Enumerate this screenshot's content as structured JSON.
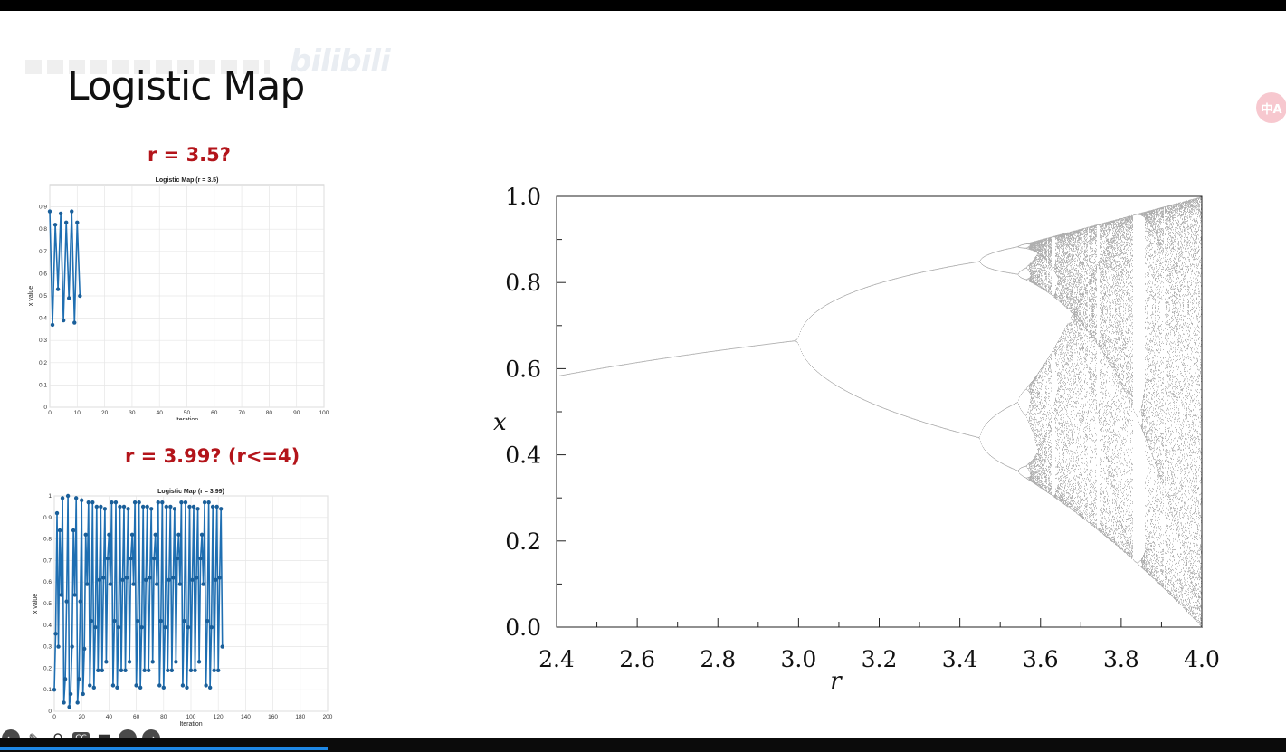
{
  "slide": {
    "title": "Logistic Map",
    "watermark": "bilibili",
    "badge": "中A",
    "caption1": "r = 3.5?",
    "caption2": "r = 3.99? (r<=4)"
  },
  "controls": [
    "arrow-left-icon",
    "pen-icon",
    "magnifier-icon",
    "cc-icon",
    "video-off-icon",
    "more-icon",
    "arrow-right-icon"
  ],
  "chart_data": [
    {
      "type": "line",
      "title": "Logistic Map (r = 3.5)",
      "xlabel": "Iteration",
      "ylabel": "x value",
      "xlim": [
        0,
        100
      ],
      "ylim": [
        0,
        1
      ],
      "xticks": [
        0,
        10,
        20,
        30,
        40,
        50,
        60,
        70,
        80,
        90,
        100
      ],
      "yticks": [
        0,
        0.1,
        0.2,
        0.3,
        0.4,
        0.5,
        0.6,
        0.7,
        0.8,
        0.9
      ],
      "grid": true,
      "color": "#1f6fb2",
      "x": [
        0,
        1,
        2,
        3,
        4,
        5,
        6,
        7,
        8,
        9,
        10,
        11
      ],
      "y": [
        0.88,
        0.37,
        0.82,
        0.53,
        0.87,
        0.39,
        0.83,
        0.49,
        0.88,
        0.38,
        0.83,
        0.5
      ]
    },
    {
      "type": "line",
      "title": "Logistic Map (r = 3.99)",
      "xlabel": "Iteration",
      "ylabel": "x value",
      "xlim": [
        0,
        200
      ],
      "ylim": [
        0,
        1
      ],
      "xticks": [
        0,
        20,
        40,
        60,
        80,
        100,
        120,
        140,
        160,
        180,
        200
      ],
      "yticks": [
        0,
        0.1,
        0.2,
        0.3,
        0.4,
        0.5,
        0.6,
        0.7,
        0.8,
        0.9,
        1
      ],
      "grid": true,
      "color": "#1f6fb2",
      "x0": 0,
      "y": [
        0.1,
        0.36,
        0.92,
        0.3,
        0.84,
        0.54,
        0.99,
        0.04,
        0.15,
        0.51,
        1.0,
        0.02,
        0.08,
        0.3,
        0.84,
        0.54,
        0.99,
        0.04,
        0.15,
        0.51,
        0.98,
        0.08,
        0.29,
        0.82,
        0.59,
        0.97,
        0.12,
        0.42,
        0.97,
        0.11,
        0.39,
        0.95,
        0.19,
        0.61,
        0.95,
        0.19,
        0.62,
        0.94,
        0.23,
        0.71,
        0.82,
        0.59,
        0.97,
        0.12,
        0.42,
        0.97,
        0.11,
        0.39,
        0.95,
        0.19,
        0.61,
        0.95,
        0.19,
        0.62,
        0.94,
        0.23,
        0.71,
        0.82,
        0.59,
        0.97,
        0.12,
        0.42,
        0.97,
        0.11,
        0.39,
        0.95,
        0.19,
        0.61,
        0.95,
        0.19,
        0.62,
        0.94,
        0.23,
        0.71,
        0.82,
        0.59,
        0.97,
        0.12,
        0.42,
        0.97,
        0.11,
        0.39,
        0.95,
        0.19,
        0.61,
        0.95,
        0.19,
        0.62,
        0.94,
        0.23,
        0.71,
        0.82,
        0.59,
        0.97,
        0.12,
        0.42,
        0.97,
        0.11,
        0.39,
        0.95,
        0.19,
        0.61,
        0.95,
        0.19,
        0.62,
        0.94,
        0.23,
        0.71,
        0.82,
        0.59,
        0.97,
        0.12,
        0.42,
        0.97,
        0.11,
        0.39,
        0.95,
        0.19,
        0.61,
        0.95,
        0.19,
        0.62,
        0.94,
        0.3
      ]
    },
    {
      "type": "scatter",
      "title": "",
      "xlabel": "r",
      "ylabel": "x",
      "xlim": [
        2.4,
        4.0
      ],
      "ylim": [
        0,
        1
      ],
      "xticks": [
        "2.4",
        "2.6",
        "2.8",
        "3.0",
        "3.2",
        "3.4",
        "3.6",
        "3.8",
        "4.0"
      ],
      "yticks": [
        "0.0",
        "0.2",
        "0.4",
        "0.6",
        "0.8",
        "1.0"
      ],
      "grid": false,
      "color": "#000000",
      "r_range": [
        2.4,
        4.0
      ]
    }
  ]
}
